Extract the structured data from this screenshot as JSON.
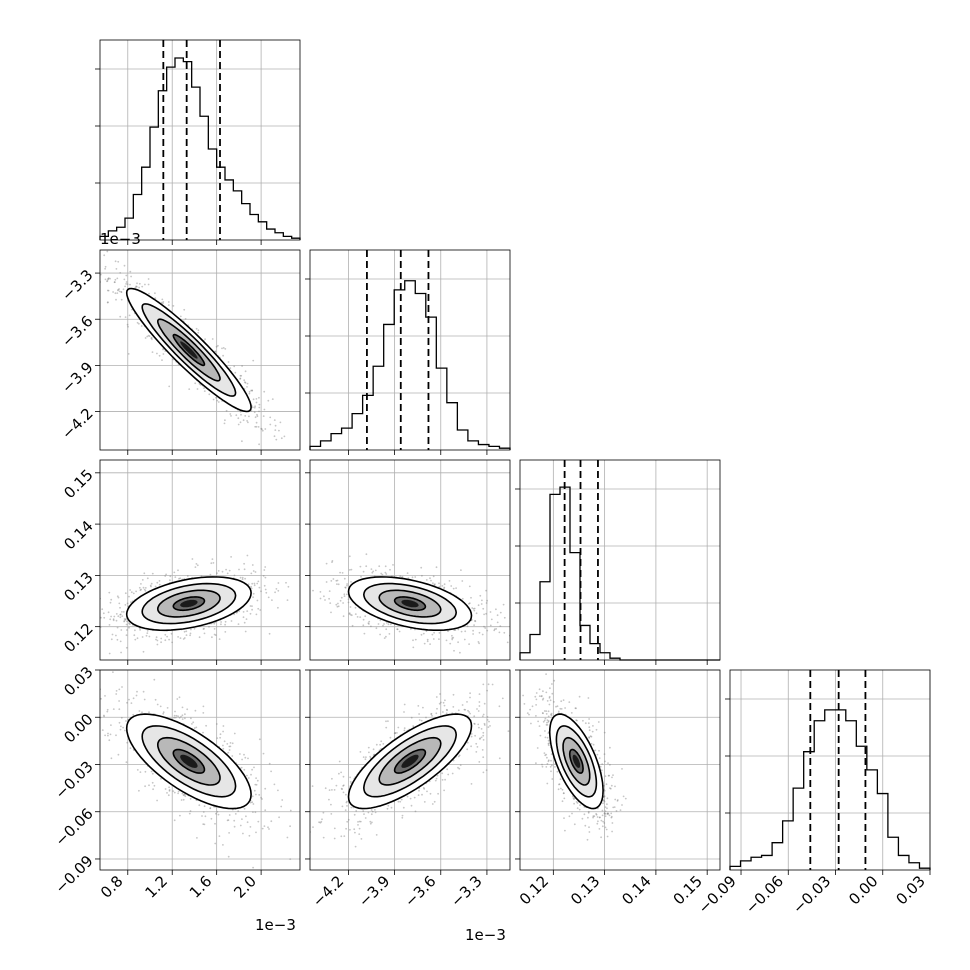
{
  "chart_data": {
    "type": "corner",
    "parameters": [
      {
        "range": [
          0.00055,
          0.00235
        ],
        "ticks": [
          0.0008,
          0.0012,
          0.0016,
          0.002
        ],
        "tick_labels": [
          "0.8",
          "1.2",
          "1.6",
          "2.0"
        ],
        "offset": "1e−3",
        "quantiles": [
          0.00112,
          0.00133,
          0.00163
        ],
        "hist": [
          0.02,
          0.05,
          0.07,
          0.12,
          0.25,
          0.4,
          0.62,
          0.82,
          0.95,
          1.0,
          0.98,
          0.84,
          0.68,
          0.5,
          0.4,
          0.33,
          0.27,
          0.2,
          0.14,
          0.1,
          0.06,
          0.04,
          0.02,
          0.01
        ]
      },
      {
        "range": [
          -0.00445,
          -0.00315
        ],
        "ticks": [
          -0.0042,
          -0.0039,
          -0.0036,
          -0.0033
        ],
        "tick_labels": [
          "−4.2",
          "−3.9",
          "−3.6",
          "−3.3"
        ],
        "offset": "1e−3",
        "quantiles": [
          -0.00408,
          -0.00386,
          -0.00368
        ],
        "hist": [
          0.02,
          0.05,
          0.09,
          0.12,
          0.2,
          0.3,
          0.46,
          0.69,
          0.88,
          0.93,
          0.86,
          0.73,
          0.45,
          0.26,
          0.11,
          0.05,
          0.03,
          0.02,
          0.01
        ]
      },
      {
        "range": [
          0.1135,
          0.1525
        ],
        "ticks": [
          0.12,
          0.13,
          0.14,
          0.15
        ],
        "tick_labels": [
          "0.12",
          "0.13",
          "0.14",
          "0.15"
        ],
        "offset": "",
        "quantiles": [
          0.1222,
          0.1253,
          0.1287
        ],
        "hist": [
          0.04,
          0.14,
          0.43,
          0.91,
          0.95,
          0.59,
          0.19,
          0.09,
          0.04,
          0.01,
          0.0,
          0.0,
          0.0,
          0.0,
          0.0,
          0.0,
          0.0,
          0.0,
          0.0,
          0.0
        ]
      },
      {
        "range": [
          -0.097,
          0.03
        ],
        "ticks": [
          -0.09,
          -0.06,
          -0.03,
          0.0,
          0.03
        ],
        "tick_labels": [
          "−0.09",
          "−0.06",
          "−0.03",
          "0.00",
          "0.03"
        ],
        "offset": "",
        "quantiles": [
          -0.046,
          -0.028,
          -0.011
        ],
        "hist": [
          0.02,
          0.05,
          0.07,
          0.08,
          0.15,
          0.27,
          0.45,
          0.65,
          0.82,
          0.88,
          0.88,
          0.82,
          0.68,
          0.55,
          0.42,
          0.18,
          0.08,
          0.04,
          0.01
        ]
      }
    ],
    "pairs": [
      {
        "row": 1,
        "col": 0,
        "mean": [
          0.00135,
          -0.0038
        ],
        "sd": [
          0.00028,
          0.0002
        ],
        "rho": -0.93
      },
      {
        "row": 2,
        "col": 0,
        "mean": [
          0.00135,
          0.1245
        ],
        "sd": [
          0.00028,
          0.0026
        ],
        "rho": 0.4
      },
      {
        "row": 2,
        "col": 1,
        "mean": [
          -0.0038,
          0.1245
        ],
        "sd": [
          0.0002,
          0.0026
        ],
        "rho": -0.45
      },
      {
        "row": 3,
        "col": 0,
        "mean": [
          0.00135,
          -0.028
        ],
        "sd": [
          0.00028,
          0.015
        ],
        "rho": -0.7
      },
      {
        "row": 3,
        "col": 1,
        "mean": [
          -0.0038,
          -0.028
        ],
        "sd": [
          0.0002,
          0.015
        ],
        "rho": 0.75
      },
      {
        "row": 3,
        "col": 2,
        "mean": [
          0.1245,
          -0.028
        ],
        "sd": [
          0.0026,
          0.015
        ],
        "rho": -0.62
      }
    ],
    "contour_levels_sigma": [
      0.5,
      1.0,
      1.5,
      2.0
    ],
    "grid": true
  }
}
